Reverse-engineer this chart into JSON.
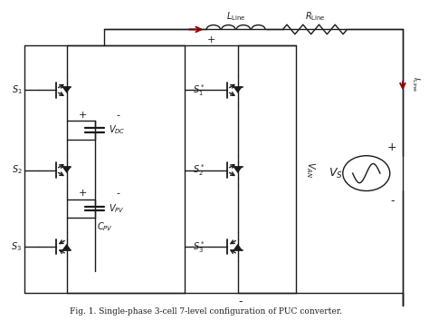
{
  "caption": "Fig. 1. Single-phase 3-cell 7-level configuration of PUC converter.",
  "bg_color": "#ffffff",
  "line_color": "#1a1a1a",
  "dark_red": "#8B0000",
  "fig_width": 4.74,
  "fig_height": 3.54,
  "dpi": 100,
  "lw": 1.0
}
